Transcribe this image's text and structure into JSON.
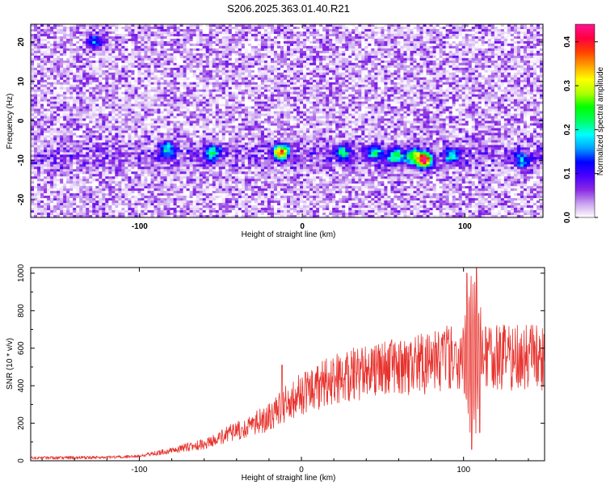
{
  "title": "S206.2025.363.01.40.R21",
  "chart_data": [
    {
      "type": "heatmap",
      "title": "S206.2025.363.01.40.R21",
      "xlabel": "Height of straight line (km)",
      "ylabel": "Frequency (Hz)",
      "xlim": [
        -167,
        148
      ],
      "ylim": [
        -24.5,
        24.5
      ],
      "xticks": [
        -100,
        0,
        100
      ],
      "xtick_labels": [
        "-100",
        "0",
        "100"
      ],
      "yticks": [
        -20,
        -10,
        0,
        10,
        20
      ],
      "ytick_labels": [
        "-20",
        "-10",
        "0",
        "10",
        "20"
      ],
      "colorbar": {
        "label": "Normalized spectral amplitude",
        "range": [
          0.0,
          0.44
        ],
        "ticks": [
          0.0,
          0.1,
          0.2,
          0.3,
          0.4
        ],
        "tick_labels": [
          "0.0",
          "0.1",
          "0.2",
          "0.3",
          "0.4"
        ],
        "colors": [
          "#ffffff",
          "#c9a2ef",
          "#8a2be2",
          "#4b00ff",
          "#0000ff",
          "#00a0ff",
          "#00ffff",
          "#00ff60",
          "#00ff00",
          "#b0ff00",
          "#ffff00",
          "#ffa000",
          "#ff4000",
          "#ff0040",
          "#ff1493"
        ]
      },
      "band": {
        "frequency_center": -9,
        "frequency_halfwidth": 3
      },
      "hotspots": [
        {
          "x": -83,
          "y": -7,
          "value": 0.15
        },
        {
          "x": -55,
          "y": -8,
          "value": 0.18
        },
        {
          "x": -13,
          "y": -8,
          "value": 0.34
        },
        {
          "x": 25,
          "y": -8,
          "value": 0.16
        },
        {
          "x": 45,
          "y": -8,
          "value": 0.16
        },
        {
          "x": 57,
          "y": -9,
          "value": 0.2
        },
        {
          "x": 68,
          "y": -9,
          "value": 0.22
        },
        {
          "x": 75,
          "y": -10,
          "value": 0.4
        },
        {
          "x": 92,
          "y": -9,
          "value": 0.15
        },
        {
          "x": 135,
          "y": -10,
          "value": 0.15
        },
        {
          "x": -127,
          "y": 20,
          "value": 0.12
        }
      ]
    },
    {
      "type": "line",
      "xlabel": "Height of straight line (km)",
      "ylabel": "SNR (10 * v/v)",
      "xlim": [
        -167,
        150
      ],
      "ylim": [
        0,
        1030
      ],
      "xticks": [
        -100,
        0,
        100
      ],
      "xtick_labels": [
        "-100",
        "0",
        "100"
      ],
      "yticks": [
        0,
        200,
        400,
        600,
        800,
        1000
      ],
      "ytick_labels": [
        "0",
        "200",
        "400",
        "600",
        "800",
        "1000"
      ],
      "series": [
        {
          "name": "SNR",
          "color": "#e8332e",
          "envelope": [
            {
              "x": -167,
              "y": 15
            },
            {
              "x": -120,
              "y": 18
            },
            {
              "x": -100,
              "y": 25
            },
            {
              "x": -80,
              "y": 55
            },
            {
              "x": -60,
              "y": 90
            },
            {
              "x": -40,
              "y": 160
            },
            {
              "x": -20,
              "y": 230
            },
            {
              "x": -10,
              "y": 300
            },
            {
              "x": 0,
              "y": 360
            },
            {
              "x": 20,
              "y": 430
            },
            {
              "x": 40,
              "y": 480
            },
            {
              "x": 60,
              "y": 500
            },
            {
              "x": 80,
              "y": 520
            },
            {
              "x": 95,
              "y": 560
            },
            {
              "x": 102,
              "y": 580
            },
            {
              "x": 110,
              "y": 560
            },
            {
              "x": 120,
              "y": 550
            },
            {
              "x": 150,
              "y": 550
            }
          ],
          "spikes": [
            {
              "x": -12,
              "y": 510
            },
            {
              "x": 33,
              "y": 580
            },
            {
              "x": 65,
              "y": 610
            },
            {
              "x": 86,
              "y": 580
            },
            {
              "x": 102,
              "y": 1000
            },
            {
              "x": 105,
              "y": 60
            },
            {
              "x": 108,
              "y": 1030
            },
            {
              "x": 110,
              "y": 150
            }
          ]
        }
      ]
    }
  ]
}
